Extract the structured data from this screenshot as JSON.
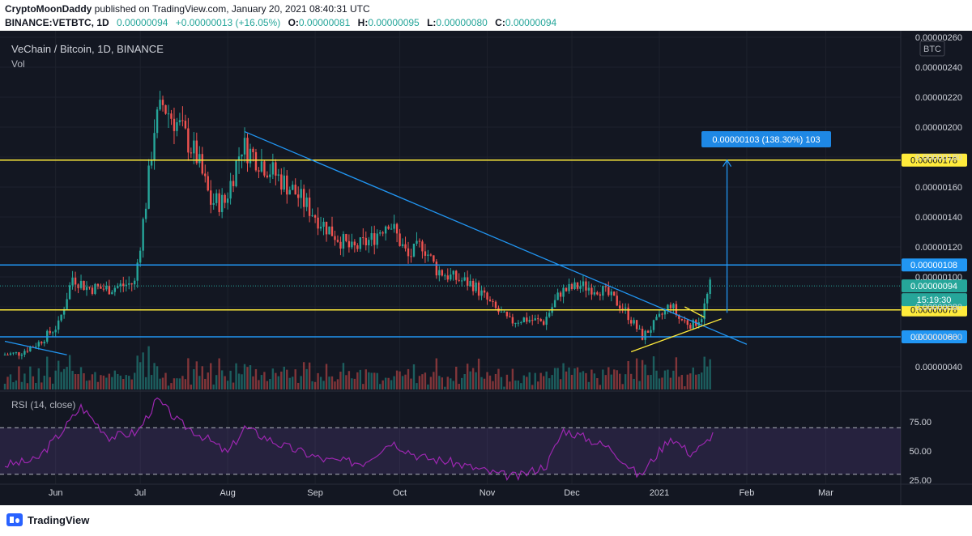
{
  "header": {
    "publisher": "CryptoMoonDaddy",
    "published_text": "published on TradingView.com, January 20, 2021 08:40:31 UTC",
    "symbol": "BINANCE:VETBTC, 1D",
    "last": "0.00000094",
    "change": "+0.00000013 (+16.05%)",
    "o_label": "O:",
    "o_value": "0.00000081",
    "h_label": "H:",
    "h_value": "0.00000095",
    "l_label": "L:",
    "l_value": "0.00000080",
    "c_label": "C:",
    "c_value": "0.00000094"
  },
  "chart_title": "VeChain / Bitcoin, 1D, BINANCE",
  "vol_label": "Vol",
  "rsi_label": "RSI (14, close)",
  "currency_badge": "BTC",
  "footer": {
    "brand": "TradingView"
  },
  "colors": {
    "background": "#131722",
    "up": "#26a69a",
    "down": "#ef5350",
    "blue_line": "#2196f3",
    "yellow_line": "#ffeb3b",
    "rsi_line": "#9c27b0",
    "rsi_band": "#7e57c2"
  },
  "chart_data": [
    {
      "type": "candlestick",
      "title": "VeChain / Bitcoin, 1D, BINANCE",
      "x_ticks": [
        "Jun",
        "Jul",
        "Aug",
        "Sep",
        "Oct",
        "Nov",
        "Dec",
        "2021",
        "Feb",
        "Mar"
      ],
      "y_ticks": [
        "0.00000040",
        "0.00000060",
        "0.00000080",
        "0.00000100",
        "0.00000120",
        "0.00000140",
        "0.00000160",
        "0.00000180",
        "0.00000200",
        "0.00000220",
        "0.00000240",
        "0.00000260"
      ],
      "ylim": [
        2.3e-07,
        2.6e-06
      ],
      "close_path": [
        [
          "2020-05-14",
          4.8e-07
        ],
        [
          "2020-05-20",
          4.9e-07
        ],
        [
          "2020-05-27",
          5.6e-07
        ],
        [
          "2020-06-03",
          6.8e-07
        ],
        [
          "2020-06-08",
          1e-06
        ],
        [
          "2020-06-13",
          9.3e-07
        ],
        [
          "2020-06-20",
          9.2e-07
        ],
        [
          "2020-06-30",
          9.6e-07
        ],
        [
          "2020-07-04",
          1.5e-06
        ],
        [
          "2020-07-07",
          2e-06
        ],
        [
          "2020-07-10",
          2.15e-06
        ],
        [
          "2020-07-16",
          2e-06
        ],
        [
          "2020-07-22",
          1.8e-06
        ],
        [
          "2020-07-27",
          1.5e-06
        ],
        [
          "2020-08-01",
          1.5e-06
        ],
        [
          "2020-08-07",
          1.88e-06
        ],
        [
          "2020-08-15",
          1.75e-06
        ],
        [
          "2020-08-25",
          1.58e-06
        ],
        [
          "2020-09-05",
          1.35e-06
        ],
        [
          "2020-09-15",
          1.18e-06
        ],
        [
          "2020-09-22",
          1.25e-06
        ],
        [
          "2020-09-28",
          1.38e-06
        ],
        [
          "2020-10-05",
          1.13e-06
        ],
        [
          "2020-10-10",
          1.22e-06
        ],
        [
          "2020-10-15",
          1.05e-06
        ],
        [
          "2020-10-20",
          1e-06
        ],
        [
          "2020-10-28",
          9.5e-07
        ],
        [
          "2020-11-04",
          8e-07
        ],
        [
          "2020-11-10",
          7e-07
        ],
        [
          "2020-11-15",
          7.2e-07
        ],
        [
          "2020-11-22",
          7e-07
        ],
        [
          "2020-11-28",
          9e-07
        ],
        [
          "2020-12-05",
          9.4e-07
        ],
        [
          "2020-12-12",
          9.2e-07
        ],
        [
          "2020-12-20",
          8e-07
        ],
        [
          "2020-12-27",
          6e-07
        ],
        [
          "2021-01-01",
          7e-07
        ],
        [
          "2021-01-06",
          8.2e-07
        ],
        [
          "2021-01-09",
          7.2e-07
        ],
        [
          "2021-01-14",
          6.8e-07
        ],
        [
          "2021-01-17",
          7.4e-07
        ],
        [
          "2021-01-20",
          9.4e-07
        ]
      ],
      "lines": [
        {
          "name": "resistance",
          "price": 1.08e-06,
          "label": "0.00000108",
          "color": "#2196f3"
        },
        {
          "name": "support",
          "price": 6e-07,
          "label": "0.00000060",
          "color": "#2196f3"
        },
        {
          "name": "target",
          "price": 1.78e-06,
          "label": "0.00000178",
          "color": "#ffeb3b"
        },
        {
          "name": "breakout",
          "price": 7.8e-07,
          "label": "0.00000078",
          "color": "#ffeb3b"
        }
      ],
      "last_price_label": "0.00000094",
      "countdown_label": "15:19:30",
      "measure_label": "0.00000103 (138.30%) 103",
      "trendlines": [
        {
          "from": [
            "2020-08-07",
            1.97e-06
          ],
          "to": [
            "2021-02-01",
            5.5e-07
          ]
        },
        {
          "from": [
            "2020-05-14",
            5.7e-07
          ],
          "to": [
            "2020-06-05",
            4.8e-07
          ]
        }
      ]
    },
    {
      "type": "line",
      "name": "RSI (14, close)",
      "y_ticks": [
        "25.00",
        "50.00",
        "75.00"
      ],
      "ylim": [
        10,
        100
      ],
      "bands": [
        30,
        70
      ],
      "values_path": [
        [
          "2020-05-14",
          38
        ],
        [
          "2020-05-25",
          42
        ],
        [
          "2020-06-03",
          66
        ],
        [
          "2020-06-10",
          88
        ],
        [
          "2020-06-20",
          62
        ],
        [
          "2020-06-30",
          66
        ],
        [
          "2020-07-07",
          94
        ],
        [
          "2020-07-15",
          74
        ],
        [
          "2020-07-25",
          60
        ],
        [
          "2020-08-01",
          48
        ],
        [
          "2020-08-07",
          70
        ],
        [
          "2020-08-20",
          55
        ],
        [
          "2020-09-05",
          42
        ],
        [
          "2020-09-18",
          40
        ],
        [
          "2020-09-28",
          58
        ],
        [
          "2020-10-08",
          45
        ],
        [
          "2020-10-20",
          40
        ],
        [
          "2020-11-05",
          30
        ],
        [
          "2020-11-12",
          28
        ],
        [
          "2020-11-22",
          38
        ],
        [
          "2020-11-28",
          68
        ],
        [
          "2020-12-05",
          62
        ],
        [
          "2020-12-15",
          52
        ],
        [
          "2020-12-25",
          28
        ],
        [
          "2021-01-01",
          50
        ],
        [
          "2021-01-05",
          62
        ],
        [
          "2021-01-12",
          48
        ],
        [
          "2021-01-17",
          55
        ],
        [
          "2021-01-20",
          66
        ]
      ]
    }
  ]
}
